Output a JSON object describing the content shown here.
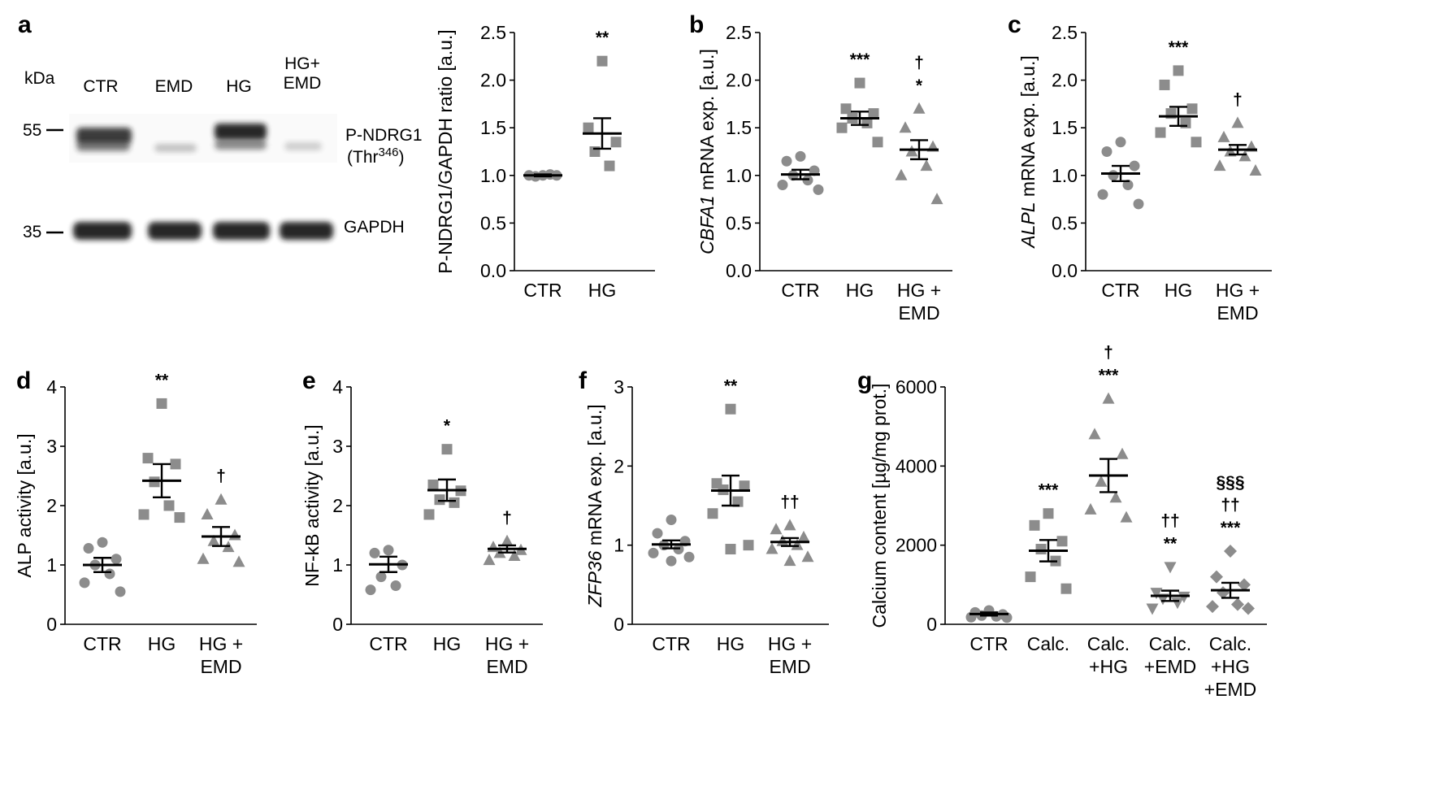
{
  "colors": {
    "dots": "#8c8c8c",
    "ink": "#000000",
    "band": "#1a1a1a"
  },
  "blot": {
    "panel": "a",
    "kda_label": "kDa",
    "lanes": [
      "CTR",
      "EMD",
      "HG",
      "HG+\nEMD"
    ],
    "markers": [
      "55",
      "35"
    ],
    "targets": [
      "P-NDRG1",
      "(Thr346)",
      "GAPDH"
    ]
  },
  "chart_data": [
    {
      "panel": "a",
      "type": "scatter",
      "marker": "circle/square",
      "categories": [
        "CTR",
        "HG"
      ],
      "ylabel": "P-NDRG1/GAPDH ratio [a.u.]",
      "ylim": [
        0,
        2.5
      ],
      "yticks": [
        "0.0",
        "0.5",
        "1.0",
        "1.5",
        "2.0",
        "2.5"
      ],
      "means": [
        1.0,
        1.44
      ],
      "sem": [
        0.01,
        0.16
      ],
      "points": [
        [
          1.0,
          1.0,
          1.0,
          0.99,
          1.01
        ],
        [
          2.2,
          1.5,
          1.35,
          1.25,
          1.1
        ]
      ],
      "significance": [
        "",
        "**"
      ],
      "markers": [
        "circle",
        "square"
      ]
    },
    {
      "panel": "b",
      "type": "scatter",
      "categories": [
        "CTR",
        "HG",
        "HG +\nEMD"
      ],
      "ylabel": "CBFA1 mRNA exp. [a.u.]",
      "ylabel_italic": "CBFA1",
      "ylim": [
        0,
        2.5
      ],
      "yticks": [
        "0.0",
        "0.5",
        "1.0",
        "1.5",
        "2.0",
        "2.5"
      ],
      "means": [
        1.01,
        1.6,
        1.27
      ],
      "sem": [
        0.05,
        0.07,
        0.1
      ],
      "points": [
        [
          1.2,
          1.15,
          1.05,
          1.0,
          0.95,
          0.9,
          0.85
        ],
        [
          1.97,
          1.7,
          1.65,
          1.6,
          1.55,
          1.5,
          1.35
        ],
        [
          1.7,
          1.5,
          1.3,
          1.25,
          1.1,
          1.0,
          0.75
        ]
      ],
      "significance": [
        "",
        "***",
        "†\n*"
      ],
      "markers": [
        "circle",
        "square",
        "triangle"
      ]
    },
    {
      "panel": "c",
      "type": "scatter",
      "categories": [
        "CTR",
        "HG",
        "HG +\nEMD"
      ],
      "ylabel": "ALPL mRNA exp. [a.u.]",
      "ylabel_italic": "ALPL",
      "ylim": [
        0,
        2.5
      ],
      "yticks": [
        "0.0",
        "0.5",
        "1.0",
        "1.5",
        "2.0",
        "2.5"
      ],
      "means": [
        1.02,
        1.62,
        1.27
      ],
      "sem": [
        0.08,
        0.1,
        0.05
      ],
      "points": [
        [
          1.35,
          1.25,
          1.1,
          1.0,
          0.9,
          0.8,
          0.7
        ],
        [
          2.1,
          1.95,
          1.7,
          1.65,
          1.55,
          1.45,
          1.35
        ],
        [
          1.55,
          1.4,
          1.3,
          1.25,
          1.2,
          1.1,
          1.05
        ]
      ],
      "significance": [
        "",
        "***",
        "†"
      ],
      "markers": [
        "circle",
        "square",
        "triangle"
      ]
    },
    {
      "panel": "d",
      "type": "scatter",
      "categories": [
        "CTR",
        "HG",
        "HG +\nEMD"
      ],
      "ylabel": "ALP activity [a.u.]",
      "ylim": [
        0,
        4
      ],
      "yticks": [
        "0",
        "1",
        "2",
        "3",
        "4"
      ],
      "means": [
        1.0,
        2.42,
        1.48
      ],
      "sem": [
        0.12,
        0.28,
        0.16
      ],
      "points": [
        [
          1.38,
          1.28,
          1.1,
          1.0,
          0.85,
          0.7,
          0.55
        ],
        [
          3.72,
          2.8,
          2.7,
          2.4,
          2.0,
          1.85,
          1.8
        ],
        [
          2.1,
          1.85,
          1.5,
          1.4,
          1.3,
          1.1,
          1.05
        ]
      ],
      "significance": [
        "",
        "**",
        "†"
      ],
      "markers": [
        "circle",
        "square",
        "triangle"
      ]
    },
    {
      "panel": "e",
      "type": "scatter",
      "categories": [
        "CTR",
        "HG",
        "HG +\nEMD"
      ],
      "ylabel": "NF-kB activity [a.u.]",
      "ylim": [
        0,
        4
      ],
      "yticks": [
        "0",
        "1",
        "2",
        "3",
        "4"
      ],
      "means": [
        1.01,
        2.26,
        1.27
      ],
      "sem": [
        0.13,
        0.18,
        0.06
      ],
      "points": [
        [
          1.25,
          1.2,
          1.0,
          0.8,
          0.65,
          0.58
        ],
        [
          2.95,
          2.35,
          2.25,
          2.1,
          2.05,
          1.85
        ],
        [
          1.4,
          1.3,
          1.25,
          1.2,
          1.15,
          1.08
        ]
      ],
      "significance": [
        "",
        "*",
        "†"
      ],
      "markers": [
        "circle",
        "square",
        "triangle"
      ]
    },
    {
      "panel": "f",
      "type": "scatter",
      "categories": [
        "CTR",
        "HG",
        "HG +\nEMD"
      ],
      "ylabel": "ZFP36 mRNA exp. [a.u.]",
      "ylabel_italic": "ZFP36",
      "ylim": [
        0,
        3
      ],
      "yticks": [
        "0",
        "1",
        "2",
        "3"
      ],
      "means": [
        1.01,
        1.69,
        1.04
      ],
      "sem": [
        0.05,
        0.19,
        0.05
      ],
      "points": [
        [
          1.32,
          1.15,
          1.05,
          1.0,
          0.95,
          0.9,
          0.85,
          0.8
        ],
        [
          2.72,
          1.78,
          1.75,
          1.7,
          1.55,
          1.4,
          1.0,
          0.95
        ],
        [
          1.25,
          1.2,
          1.1,
          1.05,
          1.0,
          0.95,
          0.85,
          0.8
        ]
      ],
      "significance": [
        "",
        "**",
        "††"
      ],
      "markers": [
        "circle",
        "square",
        "triangle"
      ]
    },
    {
      "panel": "g",
      "type": "scatter",
      "categories": [
        "CTR",
        "Calc.",
        "Calc.\n+HG",
        "Calc.\n+EMD",
        "Calc.\n+HG\n+EMD"
      ],
      "ylabel": "Calcium content [µg/mg prot.]",
      "ylim": [
        0,
        6000
      ],
      "yticks": [
        "0",
        "2000",
        "4000",
        "6000"
      ],
      "means": [
        260,
        1860,
        3760,
        720,
        860
      ],
      "sem": [
        40,
        270,
        420,
        130,
        190
      ],
      "points": [
        [
          350,
          300,
          250,
          220,
          200,
          180,
          170
        ],
        [
          2800,
          2500,
          2100,
          1900,
          1600,
          1200,
          900
        ],
        [
          5700,
          4800,
          4300,
          3600,
          3200,
          2900,
          2700
        ],
        [
          1450,
          800,
          700,
          650,
          550,
          400
        ],
        [
          1850,
          1200,
          1000,
          800,
          500,
          450,
          400
        ]
      ],
      "significance": [
        "",
        "***",
        "†\n***",
        "††\n**",
        "§§§\n††\n***"
      ],
      "markers": [
        "circle",
        "square",
        "triangle",
        "triangle-down",
        "diamond"
      ]
    }
  ]
}
